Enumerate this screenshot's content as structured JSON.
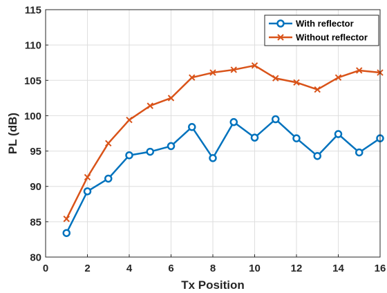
{
  "chart_data": {
    "type": "line",
    "xlabel": "Tx Position",
    "ylabel": "PL (dB)",
    "xlim": [
      0,
      16
    ],
    "ylim": [
      80,
      115
    ],
    "xticks": [
      0,
      2,
      4,
      6,
      8,
      10,
      12,
      14,
      16
    ],
    "yticks": [
      80,
      85,
      90,
      95,
      100,
      105,
      110,
      115
    ],
    "grid": true,
    "legend_position": "top-right",
    "x": [
      1,
      2,
      3,
      4,
      5,
      6,
      7,
      8,
      9,
      10,
      11,
      12,
      13,
      14,
      15,
      16
    ],
    "series": [
      {
        "name": "With reflector",
        "marker": "circle",
        "color": "#0072BD",
        "values": [
          83.4,
          89.3,
          91.1,
          94.4,
          94.9,
          95.7,
          98.4,
          94.0,
          99.1,
          96.9,
          99.5,
          96.8,
          94.3,
          97.4,
          94.8,
          96.8
        ]
      },
      {
        "name": "Without reflector",
        "marker": "x",
        "color": "#D95319",
        "values": [
          85.4,
          91.3,
          96.1,
          99.4,
          101.4,
          102.5,
          105.4,
          106.1,
          106.5,
          107.1,
          105.3,
          104.7,
          103.7,
          105.4,
          106.4,
          106.1
        ]
      }
    ]
  }
}
